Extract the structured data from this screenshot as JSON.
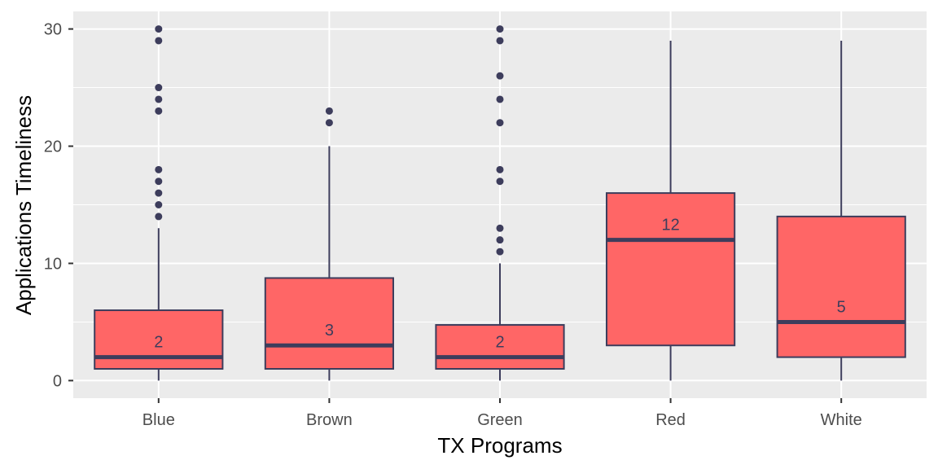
{
  "chart_data": {
    "type": "boxplot",
    "xlabel": "TX Programs",
    "ylabel": "Applications Timeliness",
    "ylim": [
      -1.5,
      31.5
    ],
    "yticks": [
      0,
      10,
      20,
      30
    ],
    "grid": true,
    "legend": "none",
    "colors": {
      "panel": "#ebebeb",
      "grid": "#ffffff",
      "box_fill": "#ff6666",
      "box_line": "#3d3d5c",
      "tick": "#333333"
    },
    "categories": [
      "Blue",
      "Brown",
      "Green",
      "Red",
      "White"
    ],
    "boxes": [
      {
        "category": "Blue",
        "lower_whisker": 0,
        "q1": 1,
        "median": 2,
        "q3": 6,
        "upper_whisker": 13,
        "median_label": "2",
        "outliers": [
          14,
          15,
          16,
          17,
          18,
          23,
          24,
          25,
          29,
          30
        ]
      },
      {
        "category": "Brown",
        "lower_whisker": 0,
        "q1": 1,
        "median": 3,
        "q3": 8.75,
        "upper_whisker": 20,
        "median_label": "3",
        "outliers": [
          22,
          23
        ]
      },
      {
        "category": "Green",
        "lower_whisker": 0,
        "q1": 1,
        "median": 2,
        "q3": 4.75,
        "upper_whisker": 10,
        "median_label": "2",
        "outliers": [
          11,
          12,
          13,
          17,
          18,
          22,
          24,
          26,
          29,
          30
        ]
      },
      {
        "category": "Red",
        "lower_whisker": 0,
        "q1": 3,
        "median": 12,
        "q3": 16,
        "upper_whisker": 29,
        "median_label": "12",
        "outliers": []
      },
      {
        "category": "White",
        "lower_whisker": 0,
        "q1": 2,
        "median": 5,
        "q3": 14,
        "upper_whisker": 29,
        "median_label": "5",
        "outliers": []
      }
    ]
  }
}
